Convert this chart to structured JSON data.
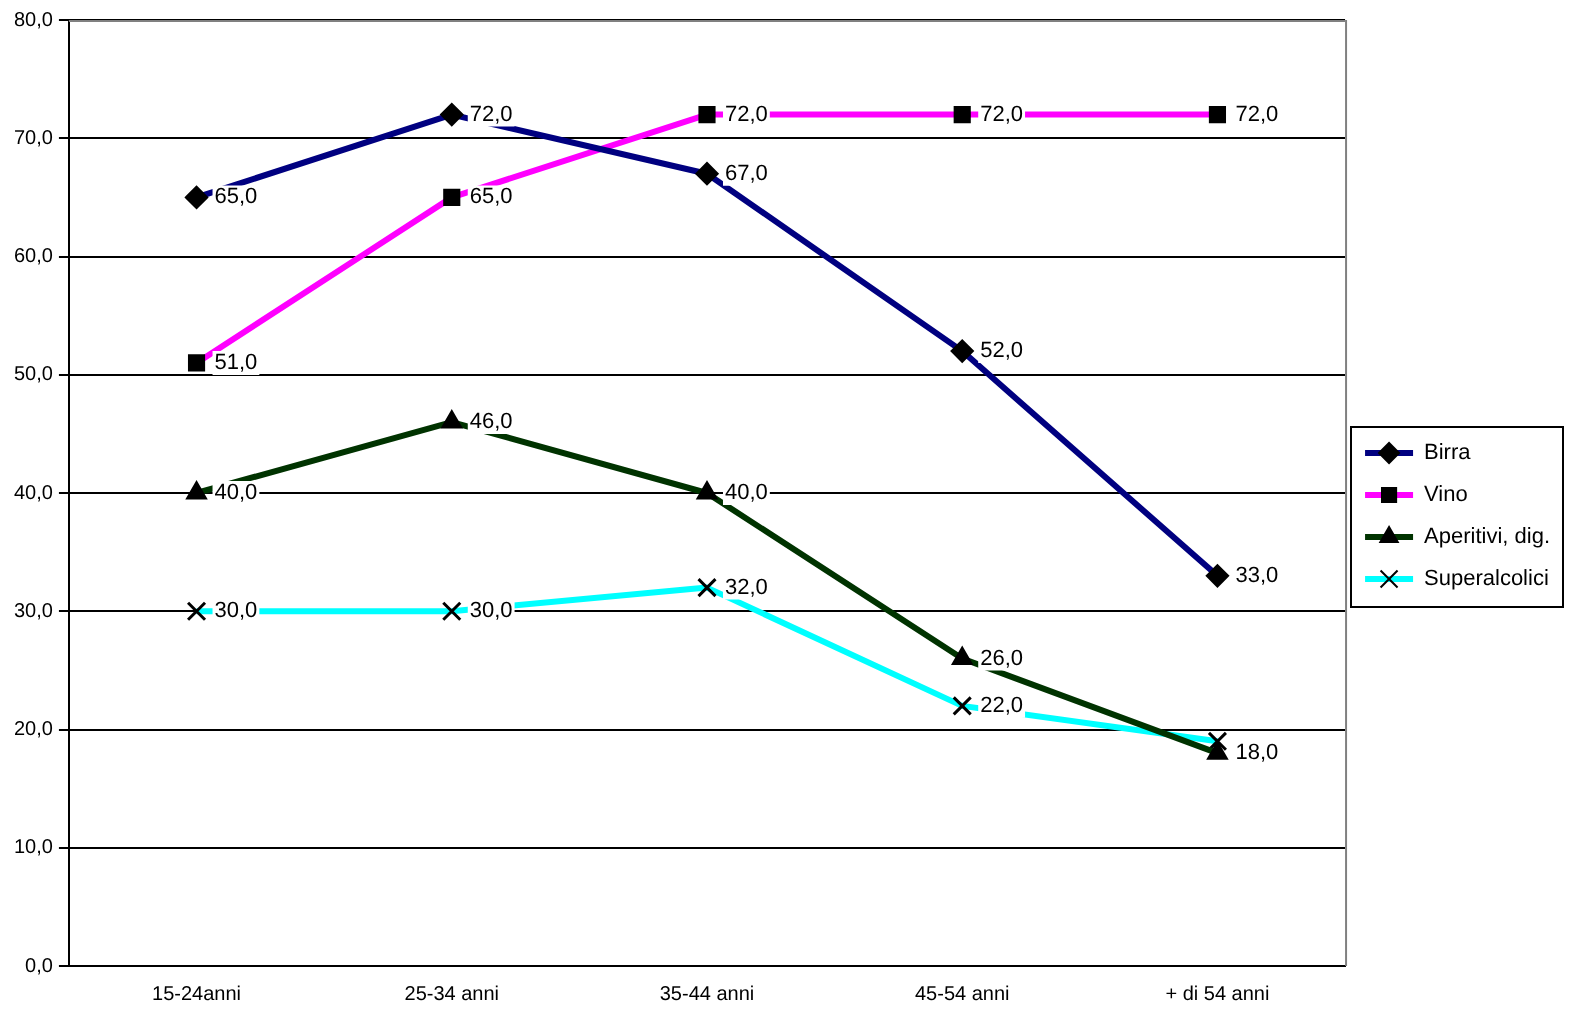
{
  "chart_data": {
    "type": "line",
    "categories": [
      "15-24anni",
      "25-34 anni",
      "35-44 anni",
      "45-54 anni",
      "+ di 54 anni"
    ],
    "series": [
      {
        "name": "Birra",
        "color": "#000080",
        "marker": "diamond",
        "values": [
          65,
          72,
          67,
          52,
          33
        ],
        "value_labels": [
          "65,0",
          "72,0",
          "67,0",
          "52,0",
          "33,0"
        ]
      },
      {
        "name": "Vino",
        "color": "#ff00ff",
        "marker": "square",
        "values": [
          51,
          65,
          72,
          72,
          72
        ],
        "value_labels": [
          "51,0",
          "65,0",
          "72,0",
          "72,0",
          "72,0"
        ]
      },
      {
        "name": "Aperitivi, dig.",
        "color": "#003300",
        "marker": "triangle",
        "values": [
          40,
          46,
          40,
          26,
          18
        ],
        "value_labels": [
          "40,0",
          "46,0",
          "40,0",
          "26,0",
          "18,0"
        ]
      },
      {
        "name": "Superalcolici",
        "color": "#00ffff",
        "marker": "cross",
        "values": [
          30,
          30,
          32,
          22,
          19
        ],
        "value_labels": [
          "30,0",
          "30,0",
          "32,0",
          "22,0",
          null
        ]
      }
    ],
    "ylim": [
      0,
      80
    ],
    "yticks": [
      {
        "value": 0,
        "label": "0,0"
      },
      {
        "value": 10,
        "label": "10,0"
      },
      {
        "value": 20,
        "label": "20,0"
      },
      {
        "value": 30,
        "label": "30,0"
      },
      {
        "value": 40,
        "label": "40,0"
      },
      {
        "value": 50,
        "label": "50,0"
      },
      {
        "value": 60,
        "label": "60,0"
      },
      {
        "value": 70,
        "label": "70,0"
      },
      {
        "value": 80,
        "label": "80,0"
      }
    ],
    "grid": "y",
    "legend": "right"
  }
}
